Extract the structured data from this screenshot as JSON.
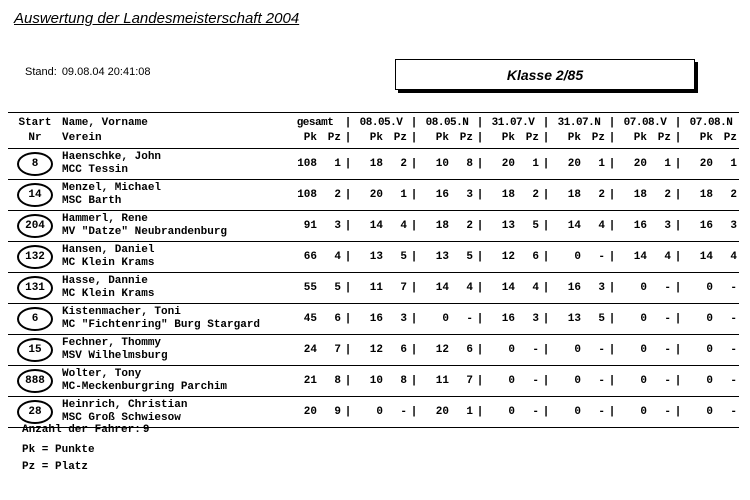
{
  "colors": {
    "ink": "#000000",
    "paper": "#ffffff"
  },
  "header": {
    "title": "Auswertung der Landesmeisterschaft 2004",
    "stand_label": "Stand:",
    "stand_value": "09.08.04 20:41:08",
    "class_box": "Klasse 2/85"
  },
  "table": {
    "separator": "|",
    "header": {
      "start_label": "Start",
      "nr_label": "Nr",
      "name_label": "Name, Vorname",
      "verein_label": "Verein",
      "groups": [
        "gesamt",
        "08.05.V",
        "08.05.N",
        "31.07.V",
        "31.07.N",
        "07.08.V",
        "07.08.N"
      ],
      "sub": [
        "Pk",
        "Pz"
      ]
    },
    "rows": [
      {
        "nr": "8",
        "name": "Haenschke, John",
        "verein": "MCC Tessin",
        "results": [
          [
            "108",
            "1"
          ],
          [
            "18",
            "2"
          ],
          [
            "10",
            "8"
          ],
          [
            "20",
            "1"
          ],
          [
            "20",
            "1"
          ],
          [
            "20",
            "1"
          ],
          [
            "20",
            "1"
          ]
        ]
      },
      {
        "nr": "14",
        "name": "Menzel, Michael",
        "verein": "MSC Barth",
        "results": [
          [
            "108",
            "2"
          ],
          [
            "20",
            "1"
          ],
          [
            "16",
            "3"
          ],
          [
            "18",
            "2"
          ],
          [
            "18",
            "2"
          ],
          [
            "18",
            "2"
          ],
          [
            "18",
            "2"
          ]
        ]
      },
      {
        "nr": "204",
        "name": "Hammerl, Rene",
        "verein": "MV \"Datze\" Neubrandenburg",
        "results": [
          [
            "91",
            "3"
          ],
          [
            "14",
            "4"
          ],
          [
            "18",
            "2"
          ],
          [
            "13",
            "5"
          ],
          [
            "14",
            "4"
          ],
          [
            "16",
            "3"
          ],
          [
            "16",
            "3"
          ]
        ]
      },
      {
        "nr": "132",
        "name": "Hansen, Daniel",
        "verein": "MC Klein Krams",
        "results": [
          [
            "66",
            "4"
          ],
          [
            "13",
            "5"
          ],
          [
            "13",
            "5"
          ],
          [
            "12",
            "6"
          ],
          [
            "0",
            "-"
          ],
          [
            "14",
            "4"
          ],
          [
            "14",
            "4"
          ]
        ]
      },
      {
        "nr": "131",
        "name": "Hasse, Dannie",
        "verein": "MC Klein Krams",
        "results": [
          [
            "55",
            "5"
          ],
          [
            "11",
            "7"
          ],
          [
            "14",
            "4"
          ],
          [
            "14",
            "4"
          ],
          [
            "16",
            "3"
          ],
          [
            "0",
            "-"
          ],
          [
            "0",
            "-"
          ]
        ]
      },
      {
        "nr": "6",
        "name": "Kistenmacher, Toni",
        "verein": "MC \"Fichtenring\" Burg Stargard",
        "results": [
          [
            "45",
            "6"
          ],
          [
            "16",
            "3"
          ],
          [
            "0",
            "-"
          ],
          [
            "16",
            "3"
          ],
          [
            "13",
            "5"
          ],
          [
            "0",
            "-"
          ],
          [
            "0",
            "-"
          ]
        ]
      },
      {
        "nr": "15",
        "name": "Fechner, Thommy",
        "verein": "MSV Wilhelmsburg",
        "results": [
          [
            "24",
            "7"
          ],
          [
            "12",
            "6"
          ],
          [
            "12",
            "6"
          ],
          [
            "0",
            "-"
          ],
          [
            "0",
            "-"
          ],
          [
            "0",
            "-"
          ],
          [
            "0",
            "-"
          ]
        ]
      },
      {
        "nr": "888",
        "name": "Wolter, Tony",
        "verein": "MC-Meckenburgring Parchim",
        "results": [
          [
            "21",
            "8"
          ],
          [
            "10",
            "8"
          ],
          [
            "11",
            "7"
          ],
          [
            "0",
            "-"
          ],
          [
            "0",
            "-"
          ],
          [
            "0",
            "-"
          ],
          [
            "0",
            "-"
          ]
        ]
      },
      {
        "nr": "28",
        "name": "Heinrich, Christian",
        "verein": "MSC Groß Schwiesow",
        "results": [
          [
            "20",
            "9"
          ],
          [
            "0",
            "-"
          ],
          [
            "20",
            "1"
          ],
          [
            "0",
            "-"
          ],
          [
            "0",
            "-"
          ],
          [
            "0",
            "-"
          ],
          [
            "0",
            "-"
          ]
        ]
      }
    ]
  },
  "footer": {
    "anzahl_label": "Anzahl der Fahrer:",
    "anzahl_value": "9",
    "legend": [
      "Pk = Punkte",
      "Pz = Platz"
    ]
  }
}
